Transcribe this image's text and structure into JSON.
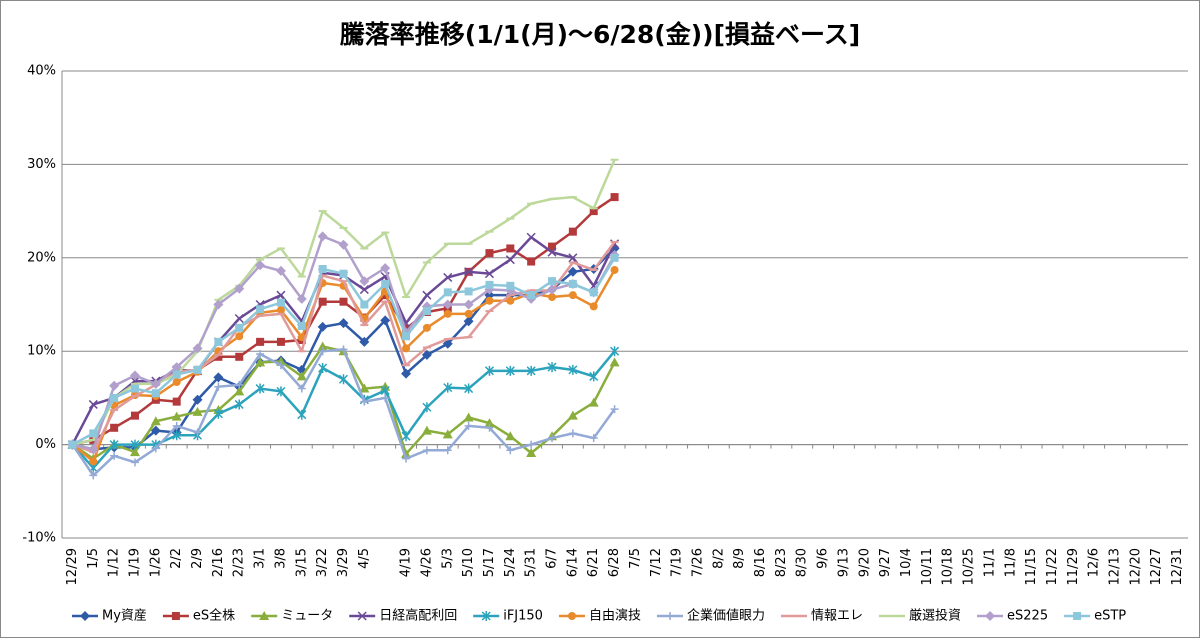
{
  "chart_data": {
    "type": "line",
    "title": "騰落率推移(1/1(月)～6/28(金))[損益ベース]",
    "categories": [
      "12/29",
      "1/5",
      "1/12",
      "1/19",
      "1/26",
      "2/2",
      "2/9",
      "2/16",
      "2/23",
      "3/1",
      "3/8",
      "3/15",
      "3/22",
      "3/29",
      "4/5",
      null,
      "4/19",
      "4/26",
      "5/3",
      "5/10",
      "5/17",
      "5/24",
      "5/31",
      "6/7",
      "6/14",
      "6/21",
      "6/28",
      "7/5",
      "7/12",
      "7/19",
      "7/26",
      "8/2",
      "8/9",
      "8/16",
      "8/23",
      "8/30",
      "9/6",
      "9/13",
      "9/20",
      "9/27",
      "10/4",
      "10/11",
      "10/18",
      "10/25",
      "11/1",
      "11/8",
      "11/15",
      "11/22",
      "11/29",
      "12/6",
      "12/13",
      "12/20",
      "12/27",
      "12/31"
    ],
    "ylim": [
      -10,
      40
    ],
    "yticks": [
      {
        "value": -10,
        "label": "-10%"
      },
      {
        "value": 0,
        "label": "0%"
      },
      {
        "value": 10,
        "label": "10%"
      },
      {
        "value": 20,
        "label": "20%"
      },
      {
        "value": 30,
        "label": "30%"
      },
      {
        "value": 40,
        "label": "40%"
      }
    ],
    "grid": true,
    "legend": "bottom",
    "series": [
      {
        "name": "My資産",
        "color": "#2e5aa8",
        "marker": "diamond",
        "values": [
          0,
          -0.5,
          -0.3,
          -0.3,
          1.5,
          1.3,
          4.8,
          7.2,
          6.2,
          8.8,
          9,
          8,
          12.6,
          13,
          11,
          13.3,
          7.6,
          9.6,
          10.8,
          13.2,
          16,
          16,
          16,
          16.6,
          18.5,
          18.8,
          21,
          null,
          null,
          null,
          null,
          null,
          null,
          null,
          null,
          null,
          null,
          null,
          null,
          null,
          null,
          null,
          null,
          null,
          null,
          null,
          null,
          null,
          null,
          null,
          null,
          null,
          null,
          null
        ]
      },
      {
        "name": "eS全株",
        "color": "#b3393a",
        "marker": "square",
        "values": [
          0,
          0.5,
          1.8,
          3.1,
          4.8,
          4.6,
          8,
          9.4,
          9.4,
          11,
          11,
          11.2,
          15.3,
          15.3,
          13.6,
          16,
          12.4,
          14.2,
          14.6,
          18.5,
          20.5,
          21,
          19.6,
          21.2,
          22.8,
          25,
          26.5,
          null,
          null,
          null,
          null,
          null,
          null,
          null,
          null,
          null,
          null,
          null,
          null,
          null,
          null,
          null,
          null,
          null,
          null,
          null,
          null,
          null,
          null,
          null,
          null,
          null,
          null,
          null
        ]
      },
      {
        "name": "ミュータ",
        "color": "#8aae3c",
        "marker": "triangle",
        "values": [
          0,
          -1.5,
          0,
          -0.8,
          2.5,
          3,
          3.5,
          3.7,
          5.7,
          8.8,
          8.9,
          7.3,
          10.5,
          10,
          6,
          6.2,
          -1,
          1.5,
          1.1,
          2.9,
          2.3,
          0.9,
          -0.9,
          0.9,
          3.1,
          4.5,
          8.8,
          null,
          null,
          null,
          null,
          null,
          null,
          null,
          null,
          null,
          null,
          null,
          null,
          null,
          null,
          null,
          null,
          null,
          null,
          null,
          null,
          null,
          null,
          null,
          null,
          null,
          null,
          null
        ]
      },
      {
        "name": "日経高配利回",
        "color": "#6a4a96",
        "marker": "x",
        "values": [
          0,
          4.3,
          5,
          6.8,
          6.8,
          8,
          7.9,
          11,
          13.5,
          15,
          16,
          13.2,
          18.4,
          18.1,
          16.6,
          18,
          13,
          16,
          17.9,
          18.5,
          18.3,
          19.8,
          22.2,
          20.6,
          20,
          17,
          21.5,
          null,
          null,
          null,
          null,
          null,
          null,
          null,
          null,
          null,
          null,
          null,
          null,
          null,
          null,
          null,
          null,
          null,
          null,
          null,
          null,
          null,
          null,
          null,
          null,
          null,
          null,
          null
        ]
      },
      {
        "name": "iFJ150",
        "color": "#2ba3bd",
        "marker": "star",
        "values": [
          0,
          -2.5,
          0,
          0,
          0,
          1,
          1,
          3.3,
          4.3,
          6,
          5.7,
          3.2,
          8.2,
          7,
          4.8,
          5.8,
          0.9,
          4,
          6.1,
          6,
          7.9,
          7.9,
          7.9,
          8.3,
          8,
          7.3,
          10,
          null,
          null,
          null,
          null,
          null,
          null,
          null,
          null,
          null,
          null,
          null,
          null,
          null,
          null,
          null,
          null,
          null,
          null,
          null,
          null,
          null,
          null,
          null,
          null,
          null,
          null,
          null
        ]
      },
      {
        "name": "自由演技",
        "color": "#e98a2b",
        "marker": "circle",
        "values": [
          0,
          -1.8,
          4.2,
          5.3,
          5.2,
          6.7,
          7.8,
          10,
          11.6,
          14.1,
          14.4,
          11.5,
          17.3,
          17,
          13.5,
          16.4,
          10.3,
          12.5,
          14,
          14,
          15.4,
          15.4,
          16.2,
          15.8,
          16,
          14.8,
          18.7,
          null,
          null,
          null,
          null,
          null,
          null,
          null,
          null,
          null,
          null,
          null,
          null,
          null,
          null,
          null,
          null,
          null,
          null,
          null,
          null,
          null,
          null,
          null,
          null,
          null,
          null,
          null
        ]
      },
      {
        "name": "企業価値眼力",
        "color": "#93a9d6",
        "marker": "plus",
        "values": [
          0,
          -3.3,
          -1.2,
          -1.9,
          -0.4,
          2,
          1.3,
          6.2,
          6.4,
          9.7,
          8.5,
          6,
          10,
          10.2,
          4.6,
          5,
          -1.5,
          -0.6,
          -0.6,
          2,
          1.8,
          -0.6,
          0,
          0.7,
          1.2,
          0.7,
          3.8,
          null,
          null,
          null,
          null,
          null,
          null,
          null,
          null,
          null,
          null,
          null,
          null,
          null,
          null,
          null,
          null,
          null,
          null,
          null,
          null,
          null,
          null,
          null,
          null,
          null,
          null,
          null
        ]
      },
      {
        "name": "情報エレ",
        "color": "#e19a9a",
        "marker": "dash",
        "values": [
          0,
          -0.8,
          3.7,
          5.2,
          6.4,
          7.8,
          8,
          9.6,
          12.6,
          13.8,
          14,
          10,
          18.1,
          17.5,
          12.8,
          15.3,
          8.5,
          10.4,
          11.3,
          11.5,
          14.3,
          16,
          16.5,
          16.5,
          19.5,
          18.7,
          21.7,
          null,
          null,
          null,
          null,
          null,
          null,
          null,
          null,
          null,
          null,
          null,
          null,
          null,
          null,
          null,
          null,
          null,
          null,
          null,
          null,
          null,
          null,
          null,
          null,
          null,
          null,
          null
        ]
      },
      {
        "name": "厳選投資",
        "color": "#bcd89a",
        "marker": "dash",
        "values": [
          0,
          0.5,
          5,
          6.5,
          6.5,
          7.5,
          10,
          15.5,
          17,
          19.8,
          21,
          18,
          25,
          23.2,
          21,
          22.7,
          15.8,
          19.5,
          21.5,
          21.5,
          22.8,
          24.2,
          25.8,
          26.3,
          26.5,
          25.3,
          30.5,
          null,
          null,
          null,
          null,
          null,
          null,
          null,
          null,
          null,
          null,
          null,
          null,
          null,
          null,
          null,
          null,
          null,
          null,
          null,
          null,
          null,
          null,
          null,
          null,
          null,
          null,
          null
        ]
      },
      {
        "name": "eS225",
        "color": "#b1a0cc",
        "marker": "diamond",
        "values": [
          0,
          -0.5,
          6.3,
          7.4,
          6.5,
          8.3,
          10.3,
          15,
          16.7,
          19.2,
          18.6,
          15.6,
          22.3,
          21.4,
          17.5,
          18.9,
          12,
          14.8,
          15,
          15,
          16.6,
          16.5,
          15.6,
          16.6,
          17.2,
          16.3,
          20.3,
          null,
          null,
          null,
          null,
          null,
          null,
          null,
          null,
          null,
          null,
          null,
          null,
          null,
          null,
          null,
          null,
          null,
          null,
          null,
          null,
          null,
          null,
          null,
          null,
          null,
          null,
          null
        ]
      },
      {
        "name": "eSTP",
        "color": "#8dc7dc",
        "marker": "square",
        "values": [
          0,
          1.2,
          5,
          6,
          5.5,
          7.5,
          8,
          11,
          12.5,
          14.5,
          15.2,
          12.7,
          18.8,
          18.3,
          15,
          17.2,
          11.6,
          14.3,
          16.3,
          16.4,
          17.1,
          17,
          16,
          17.5,
          17.2,
          16.3,
          20,
          null,
          null,
          null,
          null,
          null,
          null,
          null,
          null,
          null,
          null,
          null,
          null,
          null,
          null,
          null,
          null,
          null,
          null,
          null,
          null,
          null,
          null,
          null,
          null,
          null,
          null,
          null
        ]
      }
    ]
  }
}
